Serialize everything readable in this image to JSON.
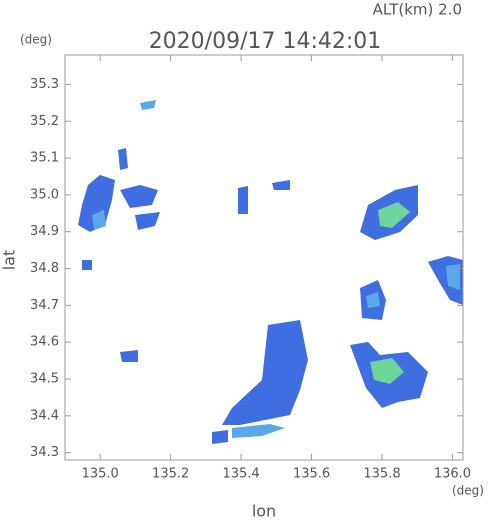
{
  "chart_data": {
    "type": "map",
    "title": "2020/09/17 14:42:01",
    "subtitle": "ALT(km)  2.0",
    "y_unit": "(deg)",
    "x_unit": "(deg)",
    "xlabel": "lon",
    "ylabel": "lat",
    "xlim": [
      134.9,
      136.03
    ],
    "ylim": [
      34.28,
      35.38
    ],
    "xticks": [
      {
        "value": 135,
        "label": "135.0"
      },
      135.2,
      135.4,
      135.6,
      135.8,
      {
        "value": 136,
        "label": "136.0"
      }
    ],
    "yticks": [
      34.3,
      34.4,
      34.5,
      34.6,
      34.7,
      34.8,
      34.9,
      {
        "value": 35,
        "label": "35.0"
      },
      35.1,
      35.2,
      35.3
    ]
  }
}
